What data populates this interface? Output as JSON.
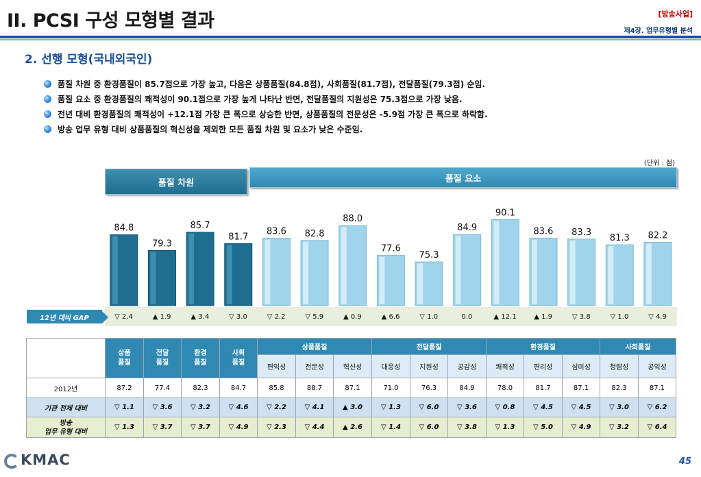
{
  "header": {
    "title": "II. PCSI 구성 모형별 결과",
    "tag": "[방송사업]",
    "chapter": "제4장. 업무유형별 분석"
  },
  "section_title": "2. 선행 모형(국내외국인)",
  "bullets": [
    "품질 차원 중 환경품질이 85.7점으로 가장 높고, 다음은 상품품질(84.8점), 사회품질(81.7점), 전달품질(79.3점) 순임.",
    "품질 요소 중 환경품질의 쾌적성이 90.1점으로 가장 높게 나타난 반면, 전달품질의 지원성은 75.3점으로 가장 낮음.",
    "전년 대비 환경품질의 쾌적성이 +12.1점 가장 큰 폭으로 상승한 반면, 상품품질의 전문성은 -5.9점 가장 큰 폭으로 하락함.",
    "방송 업무 유형 대비 상품품질의 혁신성을 제외한 모든 품질 차원 및 요소가 낮은 수준임."
  ],
  "unit": "(단위 : 점)",
  "panel_headers": {
    "dimension": "품질 차원",
    "element": "품질 요소"
  },
  "colors": {
    "dimension_bar": "#1f6d8f",
    "element_bar": "#9fd4ec",
    "accent": "#2f89b3",
    "title_blue": "#1c4f9c"
  },
  "chart_data": {
    "type": "bar",
    "categories": [
      "상품품질",
      "전달품질",
      "환경품질",
      "사회품질",
      "편익성",
      "전문성",
      "혁신성",
      "대응성",
      "지원성",
      "공감성",
      "쾌적성",
      "편리성",
      "심미성",
      "청렴성",
      "공익성"
    ],
    "values": [
      84.8,
      79.3,
      85.7,
      81.7,
      83.6,
      82.8,
      88.0,
      77.6,
      75.3,
      84.9,
      90.1,
      83.6,
      83.3,
      81.3,
      82.2
    ],
    "value_labels": [
      "84.8",
      "79.3",
      "85.7",
      "81.7",
      "83.6",
      "82.8",
      "88.0",
      "77.6",
      "75.3",
      "84.9",
      "90.1",
      "83.6",
      "83.3",
      "81.3",
      "82.2"
    ],
    "ylim": [
      60,
      95
    ]
  },
  "gap": {
    "label": "12년 대비 GAP",
    "values": [
      "▽ 2.4",
      "▲ 1.9",
      "▲ 3.4",
      "▽ 3.0",
      "▽ 2.2",
      "▽ 5.9",
      "▲ 0.9",
      "▲ 6.6",
      "▽ 1.0",
      "0.0",
      "▲ 12.1",
      "▲ 1.9",
      "▽ 3.8",
      "▽ 1.0",
      "▽ 4.9"
    ]
  },
  "table": {
    "dimensions": [
      "상품\n품질",
      "전달\n품질",
      "환경\n품질",
      "사회\n품질"
    ],
    "groups": [
      "상품품질",
      "전달품질",
      "환경품질",
      "사회품질"
    ],
    "elements": [
      "편익성",
      "전문성",
      "혁신성",
      "대응성",
      "지원성",
      "공감성",
      "쾌적성",
      "편리성",
      "심미성",
      "청렴성",
      "공익성"
    ],
    "rows": [
      {
        "label": "2012년",
        "values": [
          "87.2",
          "77.4",
          "82.3",
          "84.7",
          "85.8",
          "88.7",
          "87.1",
          "71.0",
          "76.3",
          "84.9",
          "78.0",
          "81.7",
          "87.1",
          "82.3",
          "87.1"
        ]
      },
      {
        "label": "기관 전체 대비",
        "values": [
          "▽ 1.1",
          "▽ 3.6",
          "▽ 3.2",
          "▽ 4.6",
          "▽ 2.2",
          "▽ 4.1",
          "▲ 3.0",
          "▽ 1.3",
          "▽ 6.0",
          "▽ 3.6",
          "▽ 0.8",
          "▽ 4.5",
          "▽ 4.5",
          "▽ 3.0",
          "▽ 6.2"
        ]
      },
      {
        "label": "방송\n업무 유형 대비",
        "values": [
          "▽ 1.3",
          "▽ 3.7",
          "▽ 3.7",
          "▽ 4.9",
          "▽ 2.3",
          "▽ 4.4",
          "▲ 2.6",
          "▽ 1.4",
          "▽ 6.0",
          "▽ 3.8",
          "▽ 1.3",
          "▽ 5.0",
          "▽ 4.9",
          "▽ 3.2",
          "▽ 6.4"
        ]
      }
    ]
  },
  "footer": {
    "logo": "KMAC",
    "page": "45"
  }
}
